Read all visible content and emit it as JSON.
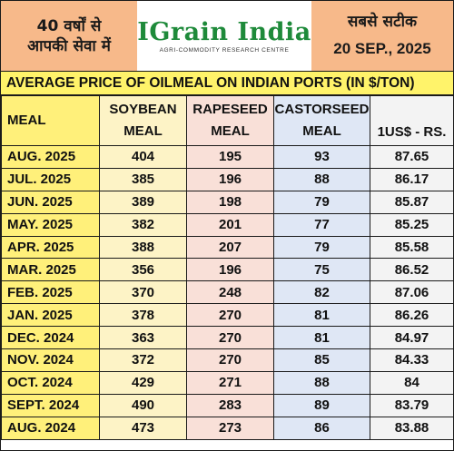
{
  "header": {
    "slogan_line1": "40 वर्षों से",
    "slogan_line2": "आपकी सेवा में",
    "logo_text": "IGrain India",
    "logo_subtitle": "AGRI-COMMODITY RESEARCH CENTRE",
    "tagline": "सबसे सटीक",
    "date": "20 SEP., 2025"
  },
  "title": "AVERAGE PRICE OF OILMEAL ON INDIAN PORTS (IN $/TON)",
  "columns": [
    {
      "line1": "MEAL",
      "line2": ""
    },
    {
      "line1": "SOYBEAN",
      "line2": "MEAL"
    },
    {
      "line1": "RAPESEED",
      "line2": "MEAL"
    },
    {
      "line1": "CASTORSEED",
      "line2": "MEAL"
    },
    {
      "line1": "1US$ - RS.",
      "line2": ""
    }
  ],
  "rows": [
    [
      "AUG. 2025",
      "404",
      "195",
      "93",
      "87.65"
    ],
    [
      "JUL. 2025",
      "385",
      "196",
      "88",
      "86.17"
    ],
    [
      "JUN. 2025",
      "389",
      "198",
      "79",
      "85.87"
    ],
    [
      "MAY. 2025",
      "382",
      "201",
      "77",
      "85.25"
    ],
    [
      "APR. 2025",
      "388",
      "207",
      "79",
      "85.58"
    ],
    [
      "MAR. 2025",
      "356",
      "196",
      "75",
      "86.52"
    ],
    [
      "FEB. 2025",
      "370",
      "248",
      "82",
      "87.06"
    ],
    [
      "JAN. 2025",
      "378",
      "270",
      "81",
      "86.26"
    ],
    [
      "DEC. 2024",
      "363",
      "270",
      "81",
      "84.97"
    ],
    [
      "NOV. 2024",
      "372",
      "270",
      "85",
      "84.33"
    ],
    [
      "OCT. 2024",
      "429",
      "271",
      "88",
      "84"
    ],
    [
      "SEPT. 2024",
      "490",
      "283",
      "89",
      "83.79"
    ],
    [
      "AUG. 2024",
      "473",
      "273",
      "86",
      "83.88"
    ]
  ],
  "colors": {
    "header_bg": "#f7b98a",
    "title_bg": "#fff36a",
    "logo_green": "#1e8a3a",
    "col_meal": "#fff07a",
    "col_soybean": "#fdf3c6",
    "col_rapeseed": "#f9e0d8",
    "col_castor": "#dfe7f5",
    "col_rate": "#f3f3f3"
  }
}
